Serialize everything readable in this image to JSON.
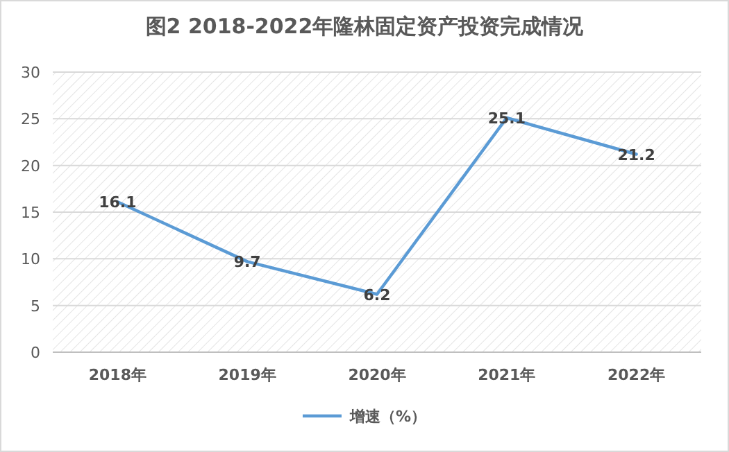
{
  "chart_data": {
    "type": "line",
    "title": "图2  2018-2022年隆林固定资产投资完成情况",
    "categories": [
      "2018年",
      "2019年",
      "2020年",
      "2021年",
      "2022年"
    ],
    "series": [
      {
        "name": "增速（%）",
        "color": "#5b9bd5",
        "values": [
          16.1,
          9.7,
          6.2,
          25.1,
          21.2
        ]
      }
    ],
    "ylim": [
      0,
      30
    ],
    "yticks": [
      0,
      5,
      10,
      15,
      20,
      25,
      30
    ],
    "grid": "y",
    "legend": "bottom",
    "data_labels": true
  }
}
